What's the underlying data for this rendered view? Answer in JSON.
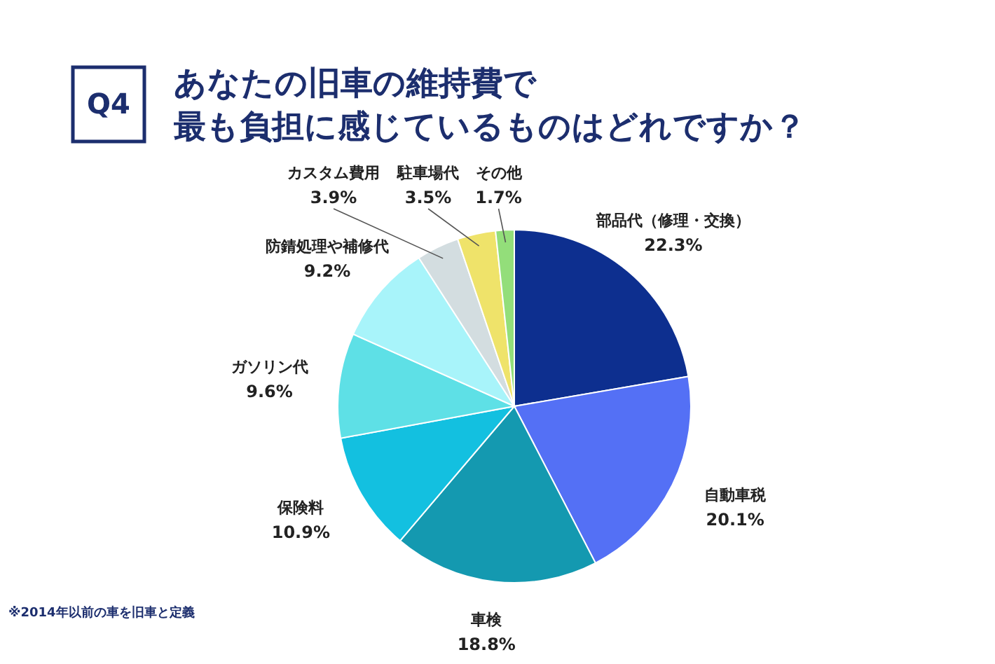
{
  "chart_data": {
    "type": "pie",
    "title": "あなたの旧車の維持費で最も負担に感じているものはどれですか？",
    "annotations": [
      "Q4",
      "※2014年以前の車を旧車と定義"
    ],
    "categories": [
      "部品代（修理・交換）",
      "自動車税",
      "車検",
      "保険料",
      "ガソリン代",
      "防錆処理や補修代",
      "カスタム費用",
      "駐車場代",
      "その他"
    ],
    "values": [
      22.3,
      20.1,
      18.8,
      10.9,
      9.6,
      9.2,
      3.9,
      3.5,
      1.7
    ],
    "value_labels": [
      "22.3%",
      "20.1%",
      "18.8%",
      "10.9%",
      "9.6%",
      "9.2%",
      "3.9%",
      "3.5%",
      "1.7%"
    ],
    "colors": [
      "#0d2f8f",
      "#5470f5",
      "#1499b0",
      "#13c0e0",
      "#5ee0e6",
      "#a8f4fa",
      "#d3dde0",
      "#efe36a",
      "#93de7a"
    ]
  }
}
